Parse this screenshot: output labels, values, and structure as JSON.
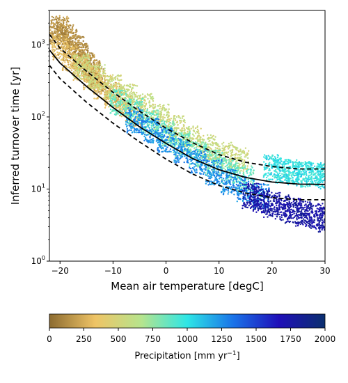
{
  "chart_data": {
    "type": "scatter",
    "title": "",
    "xlabel": "Mean air temperature [degC]",
    "ylabel": "Inferred turnover time [yr]",
    "xlim": [
      -22,
      30
    ],
    "ylim": [
      1,
      3000
    ],
    "yscale": "log",
    "grid": false,
    "x_ticks": [
      -20,
      -10,
      0,
      10,
      20,
      30
    ],
    "x_tick_labels": [
      "−20",
      "−10",
      "0",
      "10",
      "20",
      "30"
    ],
    "y_ticks": [
      1,
      10,
      100,
      1000
    ],
    "y_tick_labels": [
      "10",
      "10",
      "10",
      "10"
    ],
    "y_tick_exponents": [
      "0",
      "1",
      "2",
      "3"
    ],
    "colorbar": {
      "label_main": "Precipitation [mm yr",
      "label_exp": "−1",
      "label_end": "]",
      "range": [
        0,
        2000
      ],
      "ticks": [
        0,
        250,
        500,
        750,
        1000,
        1250,
        1500,
        1750,
        2000
      ],
      "tick_labels": [
        "0",
        "250",
        "500",
        "750",
        "1000",
        "1250",
        "1500",
        "1750",
        "2000"
      ],
      "colormap": [
        "#8c6b30",
        "#efc466",
        "#b6e48d",
        "#2ee6e6",
        "#1a73e8",
        "#1f0fb8",
        "#0a2f6e"
      ]
    },
    "fit_curves": [
      {
        "style": "solid",
        "x": [
          -22,
          -20,
          -15,
          -10,
          -5,
          0,
          5,
          10,
          15,
          20,
          25,
          30
        ],
        "y": [
          850,
          560,
          265,
          135,
          73,
          43,
          26.5,
          18.5,
          14.5,
          12.5,
          11.7,
          11.6
        ]
      },
      {
        "style": "dashed",
        "x": [
          -22,
          -20,
          -15,
          -10,
          -5,
          0,
          5,
          10,
          15,
          20,
          25,
          30
        ],
        "y": [
          1400,
          900,
          430,
          220,
          120,
          70,
          44,
          30,
          23.5,
          20.5,
          19,
          19
        ]
      },
      {
        "style": "dashed",
        "x": [
          -22,
          -20,
          -15,
          -10,
          -5,
          0,
          5,
          10,
          15,
          20,
          25,
          30
        ],
        "y": [
          520,
          340,
          160,
          82,
          45,
          26,
          16.2,
          11.2,
          8.8,
          7.6,
          7.1,
          7.1
        ]
      }
    ],
    "series": [
      {
        "precip_mm": 150,
        "x": [
          -21,
          -20,
          -19,
          -18,
          -17,
          -16,
          -15,
          -14,
          -13
        ],
        "y": [
          1500,
          1700,
          1300,
          1100,
          900,
          700,
          520,
          420,
          330
        ]
      },
      {
        "precip_mm": 300,
        "x": [
          -20,
          -18,
          -16,
          -14,
          -12,
          -10,
          -8,
          -6
        ],
        "y": [
          900,
          650,
          480,
          360,
          260,
          200,
          150,
          110
        ]
      },
      {
        "precip_mm": 550,
        "x": [
          -16,
          -13,
          -10,
          -7,
          -4,
          -1,
          2,
          5,
          8,
          11,
          14
        ],
        "y": [
          500,
          360,
          260,
          190,
          140,
          100,
          70,
          50,
          38,
          30,
          26
        ]
      },
      {
        "precip_mm": 850,
        "x": [
          -9,
          -6,
          -3,
          0,
          3,
          6,
          9,
          12,
          15
        ],
        "y": [
          160,
          120,
          85,
          60,
          42,
          30,
          23,
          18,
          14
        ]
      },
      {
        "precip_mm": 1250,
        "x": [
          -6,
          -3,
          0,
          3,
          6,
          9,
          12,
          15,
          18
        ],
        "y": [
          90,
          65,
          48,
          34,
          24,
          17,
          12.5,
          10,
          8
        ]
      },
      {
        "precip_mm": 1750,
        "x": [
          16,
          18,
          20,
          22,
          24,
          26,
          28,
          30
        ],
        "y": [
          8,
          7,
          6,
          5.5,
          5,
          4.5,
          4.2,
          3.8
        ]
      },
      {
        "precip_mm": 1000,
        "x": [
          20,
          22,
          24,
          26,
          28,
          30
        ],
        "y": [
          20,
          18,
          17,
          16,
          16,
          15
        ]
      }
    ]
  }
}
